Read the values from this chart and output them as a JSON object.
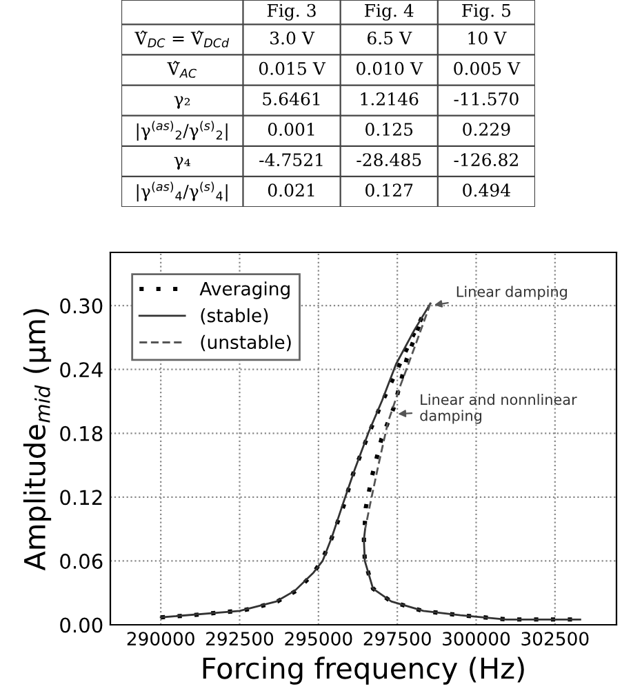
{
  "chart_data": [
    {
      "type": "other",
      "categories": [
        null,
        "Fig. 3",
        "Fig. 4",
        "Fig. 5"
      ],
      "y_categories": [
        "V̂$_{DC}$ = V̂$_{DCd}$",
        "V̂$_{AC}$",
        "γ₂",
        "|γ$^{(as)}$$_{2}$/γ$^{(s)}$$_{2}$|",
        "γ₄",
        "|γ$^{(as)}$$_{4}$/γ$^{(s)}$$_{4}$|"
      ],
      "cell_labels": [
        [
          "3.0 V",
          "6.5 V",
          "10 V"
        ],
        [
          "0.015 V",
          "0.010 V",
          "0.005 V"
        ],
        [
          "5.6461",
          "1.2146",
          "-11.570"
        ],
        [
          "0.001",
          "0.125",
          "0.229"
        ],
        [
          "-4.7521",
          "-28.485",
          "-126.82"
        ],
        [
          "0.021",
          "0.127",
          "0.494"
        ]
      ]
    },
    {
      "type": "line",
      "xlabel": "Forcing frequency (Hz)",
      "ylabel": "Amplitude$_{mid}$ (μm)",
      "xlim": [
        288400,
        304450
      ],
      "ylim": [
        0,
        0.35
      ],
      "xticks": [
        290000,
        292500,
        295000,
        297500,
        300000,
        302500
      ],
      "yticks": [
        {
          "value": 0,
          "label": "0.00"
        },
        {
          "value": 0.06,
          "label": "0.06"
        },
        {
          "value": 0.12,
          "label": "0.12"
        },
        {
          "value": 0.18,
          "label": "0.18"
        },
        {
          "value": 0.24,
          "label": "0.24"
        },
        {
          "value": 0.3,
          "label": "0.30"
        }
      ],
      "grid": true,
      "legend": "top left",
      "series": [
        {
          "name": "Averaging",
          "color": "#000000",
          "line_style": "dotted",
          "x": [
            290000,
            291000,
            292000,
            292500,
            293000,
            293700,
            294300,
            294800,
            295100,
            295400,
            295800,
            296100,
            296600,
            297000,
            297500,
            298000,
            298300,
            297800,
            297400,
            297000,
            296700,
            296500,
            296440,
            296470,
            296730,
            297300,
            298300,
            299500,
            301000,
            303300
          ],
          "values": [
            0.007,
            0.009,
            0.012,
            0.013,
            0.016,
            0.022,
            0.032,
            0.047,
            0.06,
            0.08,
            0.112,
            0.142,
            0.18,
            0.208,
            0.24,
            0.272,
            0.29,
            0.25,
            0.205,
            0.175,
            0.14,
            0.11,
            0.08,
            0.06,
            0.034,
            0.022,
            0.013,
            0.009,
            0.005,
            0.005
          ]
        },
        {
          "name": "(stable)",
          "color": "#333333",
          "line_style": "solid",
          "x": [
            290000,
            292500,
            293670,
            294250,
            294840,
            295130,
            295420,
            295780,
            296150,
            296590,
            297020,
            297460,
            298040,
            298550,
            null,
            296480,
            296440,
            296470,
            296730,
            297310,
            298330,
            299500,
            300960,
            303300
          ],
          "values": [
            0.007,
            0.013,
            0.022,
            0.032,
            0.049,
            0.06,
            0.082,
            0.114,
            0.146,
            0.181,
            0.211,
            0.245,
            0.277,
            0.302,
            null,
            0.09,
            0.08,
            0.06,
            0.034,
            0.022,
            0.013,
            0.009,
            0.005,
            0.005
          ]
        },
        {
          "name": "(unstable)",
          "color": "#555555",
          "line_style": "dashed",
          "x": [
            298550,
            298100,
            297600,
            297200,
            296900,
            296650,
            296480
          ],
          "values": [
            0.302,
            0.265,
            0.225,
            0.19,
            0.15,
            0.115,
            0.09
          ]
        }
      ],
      "annotations": [
        {
          "text": "Linear damping",
          "x": 298550,
          "y": 0.3
        },
        {
          "text": "Linear and nonnlinear\ndamping",
          "x": 297400,
          "y": 0.198
        }
      ]
    }
  ]
}
